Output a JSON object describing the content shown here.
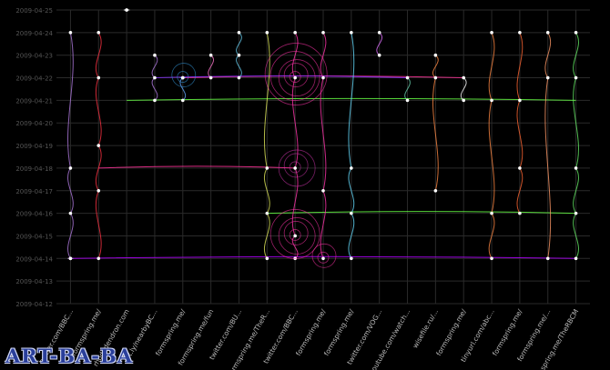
{
  "logo": {
    "text": "ART-BA-BA"
  },
  "chart_data": {
    "type": "scatter",
    "title": "",
    "xlabel": "",
    "ylabel": "",
    "grid": true,
    "background": "#000000",
    "grid_color": "#2a2a2a",
    "y_dates": [
      "2009-04-25",
      "2009-04-24",
      "2009-04-23",
      "2009-04-22",
      "2009-04-21",
      "2009-04-20",
      "2009-04-19",
      "2009-04-18",
      "2009-04-17",
      "2009-04-16",
      "2009-04-15",
      "2009-04-14",
      "2009-04-13",
      "2009-04-12"
    ],
    "ylim": [
      "2009-04-12",
      "2009-04-25"
    ],
    "categories": [
      "twitter.com/BBC...",
      "formspring.me/",
      "rhododendron.com",
      "bit.ly/nearbyBC...",
      "formspring.me/",
      "formspring.me/fun",
      "twitter.com/BU...",
      "formspring.me/TheR...",
      "twitter.com/BBC...",
      "formspring.me/",
      "formspring.me/",
      "twitter.com/VOG...",
      "youtube.com/watch...",
      "wisefile.ru/...",
      "formspring.me/",
      "tinyurl.com/abc...",
      "formspring.me/",
      "formspring.me/...",
      "formspring.me/TheRBCM"
    ],
    "series": [
      {
        "color": "#b07be0",
        "points": [
          [
            0,
            "2009-04-24"
          ],
          [
            0,
            "2009-04-18"
          ],
          [
            0,
            "2009-04-16"
          ],
          [
            0,
            "2009-04-14"
          ],
          [
            0,
            "2009-04-14"
          ]
        ]
      },
      {
        "color": "#ff3344",
        "points": [
          [
            1,
            "2009-04-24"
          ],
          [
            1,
            "2009-04-22"
          ],
          [
            1,
            "2009-04-19"
          ],
          [
            1,
            "2009-04-17"
          ],
          [
            1,
            "2009-04-14"
          ]
        ]
      },
      {
        "color": "#ffffff",
        "points": [
          [
            2,
            "2009-04-25"
          ],
          [
            2,
            "2009-04-25"
          ]
        ]
      },
      {
        "color": "#b07be0",
        "points": [
          [
            3,
            "2009-04-23"
          ],
          [
            3,
            "2009-04-22"
          ],
          [
            3,
            "2009-04-21"
          ]
        ]
      },
      {
        "color": "#66aaff",
        "points": [
          [
            4,
            "2009-04-22"
          ],
          [
            4,
            "2009-04-22"
          ],
          [
            4,
            "2009-04-21"
          ]
        ]
      },
      {
        "color": "#ff77cc",
        "points": [
          [
            5,
            "2009-04-23"
          ],
          [
            5,
            "2009-04-22"
          ]
        ]
      },
      {
        "color": "#66ccee",
        "points": [
          [
            6,
            "2009-04-24"
          ],
          [
            6,
            "2009-04-23"
          ],
          [
            6,
            "2009-04-22"
          ]
        ]
      },
      {
        "color": "#e0e85a",
        "points": [
          [
            7,
            "2009-04-24"
          ],
          [
            7,
            "2009-04-18"
          ],
          [
            7,
            "2009-04-16"
          ],
          [
            7,
            "2009-04-14"
          ]
        ]
      },
      {
        "color": "#ff33aa",
        "points": [
          [
            8,
            "2009-04-24"
          ],
          [
            8,
            "2009-04-22"
          ],
          [
            8,
            "2009-04-18"
          ],
          [
            8,
            "2009-04-15"
          ],
          [
            8,
            "2009-04-14"
          ]
        ]
      },
      {
        "color": "#ff33aa",
        "points": [
          [
            9,
            "2009-04-24"
          ],
          [
            9,
            "2009-04-22"
          ],
          [
            9,
            "2009-04-17"
          ],
          [
            9,
            "2009-04-14"
          ]
        ]
      },
      {
        "color": "#66ddff",
        "points": [
          [
            10,
            "2009-04-24"
          ],
          [
            10,
            "2009-04-18"
          ],
          [
            10,
            "2009-04-16"
          ],
          [
            10,
            "2009-04-14"
          ]
        ]
      },
      {
        "color": "#e070ff",
        "points": [
          [
            11,
            "2009-04-24"
          ],
          [
            11,
            "2009-04-23"
          ]
        ]
      },
      {
        "color": "#66ccaa",
        "points": [
          [
            12,
            "2009-04-22"
          ],
          [
            12,
            "2009-04-21"
          ]
        ]
      },
      {
        "color": "#ff8844",
        "points": [
          [
            13,
            "2009-04-23"
          ],
          [
            13,
            "2009-04-22"
          ],
          [
            13,
            "2009-04-17"
          ]
        ]
      },
      {
        "color": "#ffffff",
        "points": [
          [
            14,
            "2009-04-22"
          ],
          [
            14,
            "2009-04-21"
          ]
        ]
      },
      {
        "color": "#ff8844",
        "points": [
          [
            15,
            "2009-04-24"
          ],
          [
            15,
            "2009-04-21"
          ],
          [
            15,
            "2009-04-16"
          ],
          [
            15,
            "2009-04-14"
          ]
        ]
      },
      {
        "color": "#ff6633",
        "points": [
          [
            16,
            "2009-04-24"
          ],
          [
            16,
            "2009-04-21"
          ],
          [
            16,
            "2009-04-18"
          ],
          [
            16,
            "2009-04-16"
          ]
        ]
      },
      {
        "color": "#ff9966",
        "points": [
          [
            17,
            "2009-04-24"
          ],
          [
            17,
            "2009-04-22"
          ],
          [
            17,
            "2009-04-14"
          ]
        ]
      },
      {
        "color": "#66ee66",
        "points": [
          [
            18,
            "2009-04-24"
          ],
          [
            18,
            "2009-04-22"
          ],
          [
            18,
            "2009-04-18"
          ],
          [
            18,
            "2009-04-16"
          ],
          [
            18,
            "2009-04-14"
          ]
        ]
      }
    ],
    "links": [
      {
        "color": "#b000ff",
        "from": [
          0,
          "2009-04-14"
        ],
        "to": [
          18,
          "2009-04-14"
        ]
      },
      {
        "color": "#66ff44",
        "from": [
          7,
          "2009-04-16"
        ],
        "to": [
          18,
          "2009-04-16"
        ]
      },
      {
        "color": "#66ff44",
        "from": [
          2,
          "2009-04-21"
        ],
        "to": [
          18,
          "2009-04-21"
        ]
      },
      {
        "color": "#ff3399",
        "from": [
          4,
          "2009-04-22"
        ],
        "to": [
          14,
          "2009-04-22"
        ]
      },
      {
        "color": "#ff3399",
        "from": [
          1,
          "2009-04-18"
        ],
        "to": [
          8,
          "2009-04-18"
        ]
      },
      {
        "color": "#8833ff",
        "from": [
          3,
          "2009-04-22"
        ],
        "to": [
          12,
          "2009-04-22"
        ]
      }
    ]
  }
}
